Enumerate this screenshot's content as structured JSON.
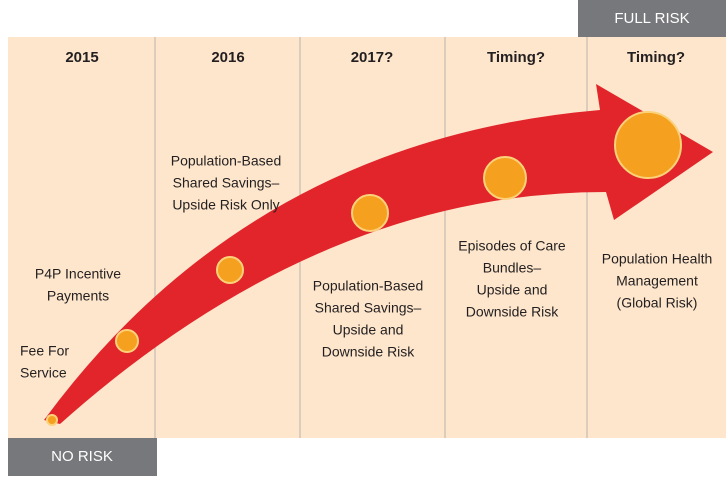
{
  "columns": [
    "2015",
    "2016",
    "2017?",
    "Timing?",
    "Timing?"
  ],
  "top_label": "FULL RISK",
  "bottom_label": "NO RISK",
  "stages": [
    {
      "lines": [
        "Fee For",
        "Service"
      ]
    },
    {
      "lines": [
        "P4P Incentive",
        "Payments"
      ]
    },
    {
      "lines": [
        "Population-Based",
        "Shared Savings–",
        "Upside Risk Only"
      ]
    },
    {
      "lines": [
        "Population-Based",
        "Shared Savings–",
        "Upside and",
        "Downside Risk"
      ]
    },
    {
      "lines": [
        "Episodes of Care",
        "Bundles–",
        "Upside and",
        "Downside Risk"
      ]
    },
    {
      "lines": [
        "Population Health",
        "Management",
        "(Global Risk)"
      ]
    }
  ]
}
